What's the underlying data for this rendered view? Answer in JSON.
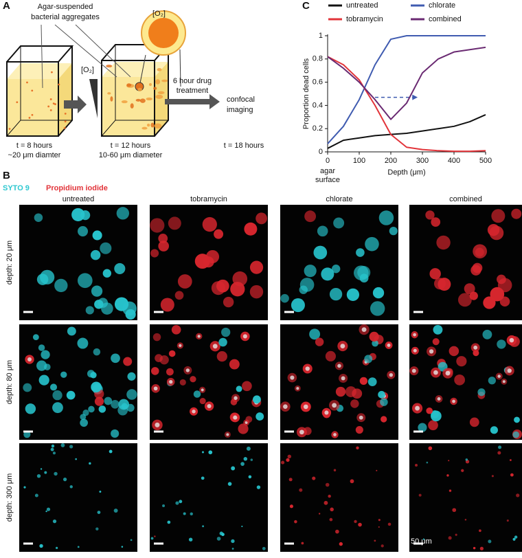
{
  "panel_a": {
    "label": "A",
    "caption_lines": [
      "Agar-suspended",
      "bacterial aggregates"
    ],
    "gradient_label": "[O₂]",
    "bubble_label": "[O₂]",
    "step1_lines": [
      "t = 8 hours",
      "~20 μm diamter"
    ],
    "step2_lines": [
      "t = 12 hours",
      "10-60 μm diameter"
    ],
    "treatment_lines": [
      "6 hour drug",
      "treatment"
    ],
    "imaging_lines": [
      "confocal",
      "imaging"
    ],
    "step3": "t = 18 hours"
  },
  "panel_b": {
    "label": "B",
    "stain_1": "SYTO 9",
    "stain_2": "Propidium iodide",
    "columns": [
      "untreated",
      "tobramycin",
      "chlorate",
      "combined"
    ],
    "rows": [
      "depth: 20 μm",
      "depth: 80 μm",
      "depth: 300 μm"
    ],
    "scale_bar": "50 μm"
  },
  "chart_data": {
    "type": "line",
    "panel_label": "C",
    "x_label": "Depth (μm)",
    "y_label": "Proportion dead cells",
    "x_annotation_lines": [
      "agar",
      "surface"
    ],
    "x": [
      0,
      50,
      100,
      150,
      200,
      250,
      300,
      350,
      400,
      450,
      500
    ],
    "series": [
      {
        "name": "untreated",
        "color": "#111111",
        "values": [
          0.03,
          0.1,
          0.12,
          0.14,
          0.15,
          0.16,
          0.18,
          0.2,
          0.22,
          0.26,
          0.32
        ]
      },
      {
        "name": "chlorate",
        "color": "#3f5bb0",
        "values": [
          0.07,
          0.22,
          0.45,
          0.75,
          0.97,
          1,
          1,
          1,
          1,
          1,
          1
        ]
      },
      {
        "name": "tobramycin",
        "color": "#e2343a",
        "values": [
          0.82,
          0.75,
          0.62,
          0.4,
          0.15,
          0.04,
          0.02,
          0.01,
          0.005,
          0.005,
          0.01
        ]
      },
      {
        "name": "combined",
        "color": "#6a2a72",
        "values": [
          0.82,
          0.72,
          0.6,
          0.45,
          0.28,
          0.42,
          0.68,
          0.8,
          0.86,
          0.88,
          0.9
        ]
      }
    ],
    "xlim": [
      0,
      500
    ],
    "xticks": [
      0,
      100,
      200,
      300,
      400,
      500
    ],
    "ylim": [
      0,
      1
    ],
    "yticks": [
      0,
      0.2,
      0.4,
      0.6,
      0.8,
      1
    ]
  }
}
